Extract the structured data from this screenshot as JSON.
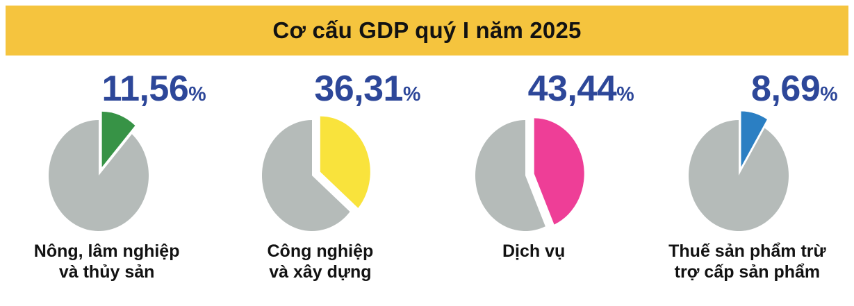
{
  "header": {
    "title": "Cơ cấu GDP quý I năm 2025"
  },
  "colors": {
    "banner": "#f5c43e",
    "title_text": "#121212",
    "value_text": "#2d4799",
    "pie_base_gray": "#b5bbb9",
    "background": "#ffffff"
  },
  "chart_data": {
    "type": "pie",
    "title": "Cơ cấu GDP quý I năm 2025",
    "unit": "%",
    "decimal_separator": ",",
    "style": "four single-slice exploded pies on a gray base circle, slice starts at 12 o'clock and sweeps clockwise",
    "base_color": "#b5bbb9",
    "legend_position": "none",
    "slices": [
      {
        "label": "Nông, lâm nghiệp và thủy sản",
        "label_lines": [
          "Nông, lâm nghiệp",
          "và thủy sản"
        ],
        "value": 11.56,
        "value_display": "11,56",
        "color": "#379346"
      },
      {
        "label": "Công nghiệp và xây dựng",
        "label_lines": [
          "Công nghiệp",
          "và xây dựng"
        ],
        "value": 36.31,
        "value_display": "36,31",
        "color": "#f9e33c"
      },
      {
        "label": "Dịch vụ",
        "label_lines": [
          "Dịch vụ"
        ],
        "value": 43.44,
        "value_display": "43,44",
        "color": "#ee3e97"
      },
      {
        "label": "Thuế sản phẩm trừ trợ cấp sản phẩm",
        "label_lines": [
          "Thuế sản phẩm trừ",
          "trợ cấp sản phẩm"
        ],
        "value": 8.69,
        "value_display": "8,69",
        "color": "#2b7fc3"
      }
    ]
  }
}
